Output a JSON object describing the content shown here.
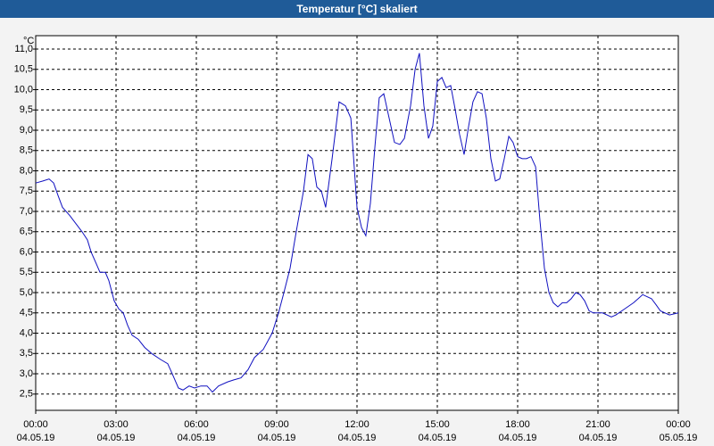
{
  "chart_data": {
    "type": "line",
    "title": "Temperatur [°C] skaliert",
    "y_label": "°C",
    "xlim": [
      0,
      24
    ],
    "ylim": [
      2.1,
      11.33
    ],
    "grid": true,
    "xticks": [
      {
        "value": 0,
        "label": "00:00"
      },
      {
        "value": 3,
        "label": "03:00"
      },
      {
        "value": 6,
        "label": "06:00"
      },
      {
        "value": 9,
        "label": "09:00"
      },
      {
        "value": 12,
        "label": "12:00"
      },
      {
        "value": 15,
        "label": "15:00"
      },
      {
        "value": 18,
        "label": "18:00"
      },
      {
        "value": 21,
        "label": "21:00"
      },
      {
        "value": 24,
        "label": "00:00"
      }
    ],
    "xtick_dates": [
      "04.05.19",
      "04.05.19",
      "04.05.19",
      "04.05.19",
      "04.05.19",
      "04.05.19",
      "04.05.19",
      "04.05.19",
      "05.05.19"
    ],
    "yticks": [
      {
        "value": 2.5,
        "label": "2,5"
      },
      {
        "value": 3,
        "label": "3,0"
      },
      {
        "value": 3.5,
        "label": "3,5"
      },
      {
        "value": 4,
        "label": "4,0"
      },
      {
        "value": 4.5,
        "label": "4,5"
      },
      {
        "value": 5,
        "label": "5,0"
      },
      {
        "value": 5.5,
        "label": "5,5"
      },
      {
        "value": 6,
        "label": "6,0"
      },
      {
        "value": 6.5,
        "label": "6,5"
      },
      {
        "value": 7,
        "label": "7,0"
      },
      {
        "value": 7.5,
        "label": "7,5"
      },
      {
        "value": 8,
        "label": "8,0"
      },
      {
        "value": 8.5,
        "label": "8,5"
      },
      {
        "value": 9,
        "label": "9,0"
      },
      {
        "value": 9.5,
        "label": "9,5"
      },
      {
        "value": 10,
        "label": "10,0"
      },
      {
        "value": 10.5,
        "label": "10,5"
      },
      {
        "value": 11,
        "label": "11,0"
      }
    ],
    "x": [
      0,
      0.27,
      0.5,
      0.67,
      0.83,
      1,
      1.27,
      1.5,
      1.73,
      1.93,
      2.07,
      2.27,
      2.4,
      2.6,
      2.73,
      2.93,
      3.1,
      3.27,
      3.43,
      3.6,
      3.83,
      4.07,
      4.33,
      4.67,
      4.93,
      5.1,
      5.33,
      5.5,
      5.73,
      5.93,
      6.17,
      6.4,
      6.6,
      6.83,
      7.17,
      7.4,
      7.67,
      7.93,
      8.17,
      8.5,
      8.83,
      9.07,
      9.27,
      9.5,
      9.73,
      10,
      10.17,
      10.33,
      10.5,
      10.67,
      10.83,
      11.07,
      11.33,
      11.57,
      11.77,
      12,
      12.17,
      12.33,
      12.5,
      12.67,
      12.83,
      13,
      13.2,
      13.4,
      13.6,
      13.77,
      14,
      14.17,
      14.33,
      14.5,
      14.67,
      14.83,
      15,
      15.17,
      15.33,
      15.5,
      15.67,
      15.83,
      16,
      16.17,
      16.33,
      16.5,
      16.67,
      16.83,
      17,
      17.17,
      17.33,
      17.5,
      17.67,
      17.83,
      18,
      18.17,
      18.33,
      18.5,
      18.67,
      18.83,
      19,
      19.17,
      19.33,
      19.5,
      19.67,
      19.83,
      20,
      20.17,
      20.33,
      20.5,
      20.67,
      20.83,
      21.17,
      21.5,
      21.67,
      22,
      22.33,
      22.5,
      22.67,
      23,
      23.17,
      23.33,
      23.67,
      24
    ],
    "series": [
      {
        "name": "Temperatur",
        "color": "#1010c0",
        "values": [
          7.7,
          7.75,
          7.8,
          7.7,
          7.4,
          7.1,
          6.9,
          6.7,
          6.5,
          6.3,
          6.0,
          5.7,
          5.5,
          5.5,
          5.3,
          4.8,
          4.6,
          4.5,
          4.2,
          3.95,
          3.85,
          3.65,
          3.5,
          3.35,
          3.25,
          3.0,
          2.65,
          2.6,
          2.7,
          2.65,
          2.7,
          2.7,
          2.55,
          2.7,
          2.8,
          2.85,
          2.9,
          3.1,
          3.4,
          3.6,
          4.0,
          4.5,
          5.0,
          5.6,
          6.5,
          7.5,
          8.4,
          8.3,
          7.6,
          7.5,
          7.1,
          8.3,
          9.7,
          9.6,
          9.3,
          7.1,
          6.6,
          6.4,
          7.2,
          8.6,
          9.8,
          9.9,
          9.3,
          8.7,
          8.65,
          8.8,
          9.6,
          10.5,
          10.9,
          9.6,
          8.8,
          9.1,
          10.2,
          10.3,
          10.05,
          10.1,
          9.5,
          8.9,
          8.4,
          9.1,
          9.7,
          9.95,
          9.9,
          9.3,
          8.3,
          7.75,
          7.8,
          8.3,
          8.85,
          8.7,
          8.35,
          8.3,
          8.3,
          8.35,
          8.1,
          6.8,
          5.6,
          5.0,
          4.75,
          4.65,
          4.75,
          4.75,
          4.85,
          5.0,
          4.95,
          4.8,
          4.55,
          4.5,
          4.5,
          4.4,
          4.45,
          4.6,
          4.75,
          4.85,
          4.95,
          4.85,
          4.7,
          4.55,
          4.45,
          4.5
        ]
      }
    ]
  }
}
